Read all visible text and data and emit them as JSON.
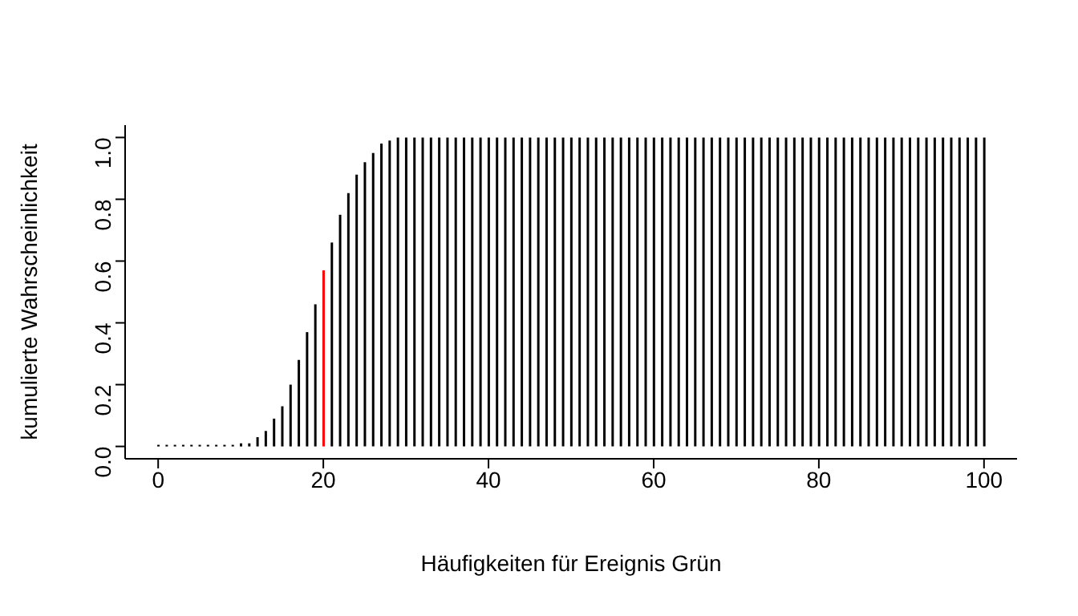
{
  "chart_data": {
    "type": "bar",
    "xlabel": "Häufigkeiten für Ereignis Grün",
    "ylabel": "kumulierte Wahrscheinlichkeit",
    "x": [
      0,
      1,
      2,
      3,
      4,
      5,
      6,
      7,
      8,
      9,
      10,
      11,
      12,
      13,
      14,
      15,
      16,
      17,
      18,
      19,
      20,
      21,
      22,
      23,
      24,
      25,
      26,
      27,
      28,
      29,
      30,
      31,
      32,
      33,
      34,
      35,
      36,
      37,
      38,
      39,
      40,
      41,
      42,
      43,
      44,
      45,
      46,
      47,
      48,
      49,
      50,
      51,
      52,
      53,
      54,
      55,
      56,
      57,
      58,
      59,
      60,
      61,
      62,
      63,
      64,
      65,
      66,
      67,
      68,
      69,
      70,
      71,
      72,
      73,
      74,
      75,
      76,
      77,
      78,
      79,
      80,
      81,
      82,
      83,
      84,
      85,
      86,
      87,
      88,
      89,
      90,
      91,
      92,
      93,
      94,
      95,
      96,
      97,
      98,
      99,
      100
    ],
    "values": [
      0,
      0,
      0,
      0,
      0,
      0,
      0,
      0,
      0,
      0,
      0.01,
      0.01,
      0.03,
      0.05,
      0.09,
      0.13,
      0.2,
      0.28,
      0.37,
      0.46,
      0.57,
      0.66,
      0.75,
      0.82,
      0.88,
      0.92,
      0.95,
      0.98,
      0.99,
      1,
      1,
      1,
      1,
      1,
      1,
      1,
      1,
      1,
      1,
      1,
      1,
      1,
      1,
      1,
      1,
      1,
      1,
      1,
      1,
      1,
      1,
      1,
      1,
      1,
      1,
      1,
      1,
      1,
      1,
      1,
      1,
      1,
      1,
      1,
      1,
      1,
      1,
      1,
      1,
      1,
      1,
      1,
      1,
      1,
      1,
      1,
      1,
      1,
      1,
      1,
      1,
      1,
      1,
      1,
      1,
      1,
      1,
      1,
      1,
      1,
      1,
      1,
      1,
      1,
      1,
      1,
      1,
      1,
      1,
      1,
      1
    ],
    "colors": [
      "#000000",
      "#000000",
      "#000000",
      "#000000",
      "#000000",
      "#000000",
      "#000000",
      "#000000",
      "#000000",
      "#000000",
      "#000000",
      "#000000",
      "#000000",
      "#000000",
      "#000000",
      "#000000",
      "#000000",
      "#000000",
      "#000000",
      "#000000",
      "#ff0000",
      "#000000",
      "#000000",
      "#000000",
      "#000000",
      "#000000",
      "#000000",
      "#000000",
      "#000000",
      "#000000",
      "#000000",
      "#000000",
      "#000000",
      "#000000",
      "#000000",
      "#000000",
      "#000000",
      "#000000",
      "#000000",
      "#000000",
      "#000000",
      "#000000",
      "#000000",
      "#000000",
      "#000000",
      "#000000",
      "#000000",
      "#000000",
      "#000000",
      "#000000",
      "#000000",
      "#000000",
      "#000000",
      "#000000",
      "#000000",
      "#000000",
      "#000000",
      "#000000",
      "#000000",
      "#000000",
      "#000000",
      "#000000",
      "#000000",
      "#000000",
      "#000000",
      "#000000",
      "#000000",
      "#000000",
      "#000000",
      "#000000",
      "#000000",
      "#000000",
      "#000000",
      "#000000",
      "#000000",
      "#000000",
      "#000000",
      "#000000",
      "#000000",
      "#000000",
      "#000000",
      "#000000",
      "#000000",
      "#000000",
      "#000000",
      "#000000",
      "#000000",
      "#000000",
      "#000000",
      "#000000",
      "#000000",
      "#000000",
      "#000000",
      "#000000",
      "#000000",
      "#000000",
      "#000000",
      "#000000",
      "#000000",
      "#000000",
      "#000000"
    ],
    "xlim": [
      -4,
      104
    ],
    "xticks": [
      0,
      20,
      40,
      60,
      80,
      100
    ],
    "ylim": [
      -0.04,
      1.04
    ],
    "yticks": [
      {
        "value": 0,
        "label": "0.0"
      },
      {
        "value": 0.2,
        "label": "0.2"
      },
      {
        "value": 0.4,
        "label": "0.4"
      },
      {
        "value": 0.6,
        "label": "0.6"
      },
      {
        "value": 0.8,
        "label": "0.8"
      },
      {
        "value": 1,
        "label": "1.0"
      }
    ]
  }
}
